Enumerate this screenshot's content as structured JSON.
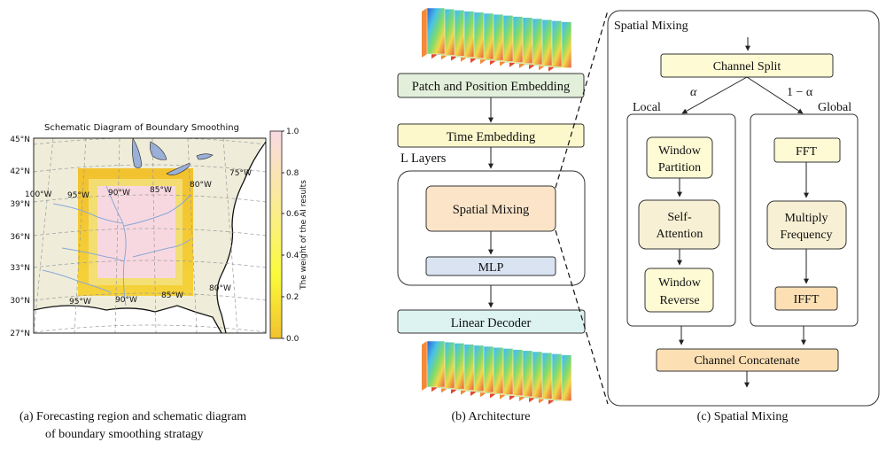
{
  "panel_a": {
    "title": "Schematic Diagram of Boundary Smoothing",
    "lat_labels": [
      "45°N",
      "42°N",
      "39°N",
      "36°N",
      "33°N",
      "30°N",
      "27°N"
    ],
    "lon_labels_top": [
      "100°W",
      "95°W",
      "90°W",
      "85°W",
      "80°W",
      "75°W"
    ],
    "lon_labels_bottom": [
      "95°W",
      "90°W",
      "85°W",
      "80°W"
    ],
    "colorbar": {
      "label": "The weight of the AI results",
      "ticks": [
        "1.0",
        "0.8",
        "0.6",
        "0.4",
        "0.2",
        "0.0"
      ],
      "color_top": "#f9d9e3",
      "color_mid": "#fafa3a",
      "color_bottom": "#f2c12e"
    },
    "caption_line1": "(a)  Forecasting region and schematic diagram",
    "caption_line2": "of boundary smoothing stratagy"
  },
  "panel_b": {
    "patch_embedding": "Patch and Position Embedding",
    "time_embedding": "Time Embedding",
    "layers_label": "L Layers",
    "spatial_mixing": "Spatial Mixing",
    "mlp": "MLP",
    "linear_decoder": "Linear Decoder",
    "caption": "(b) Architecture"
  },
  "panel_c": {
    "title": "Spatial Mixing",
    "channel_split": "Channel Split",
    "alpha": "α",
    "one_minus_alpha": "1 − α",
    "local": "Local",
    "global": "Global",
    "window_partition": [
      "Window",
      "Partition"
    ],
    "self_attention": [
      "Self-",
      "Attention"
    ],
    "window_reverse": [
      "Window",
      "Reverse"
    ],
    "fft": "FFT",
    "multiply_frequency": [
      "Multiply",
      "Frequency"
    ],
    "ifft": "IFFT",
    "channel_concatenate": "Channel Concatenate",
    "caption": "(c) Spatial Mixing"
  },
  "colors": {
    "embed_green": "#e2efda",
    "time_yellow": "#fcf8cc",
    "spatial_orange": "#fce4c8",
    "mlp_blue": "#dae3f2",
    "decoder_cyan": "#dcf3f1",
    "light_yellow": "#fdfad4",
    "cream": "#f8f0d4",
    "orange_box": "#fce0b4"
  }
}
